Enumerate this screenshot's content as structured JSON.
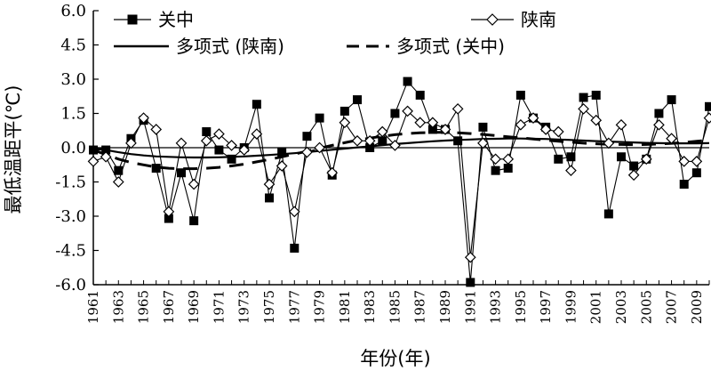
{
  "chart_data": {
    "type": "line",
    "xlabel": "年份(年)",
    "ylabel": "最低温距平(℃)",
    "ylim": [
      -6.0,
      6.0
    ],
    "yticks": [
      "6.0",
      "4.5",
      "3.0",
      "1.5",
      "0.0",
      "-1.5",
      "-3.0",
      "-4.5",
      "-6.0"
    ],
    "xlim": [
      1961,
      2010
    ],
    "xticks": [
      "1961",
      "1963",
      "1965",
      "1967",
      "1969",
      "1971",
      "1973",
      "1975",
      "1977",
      "1979",
      "1981",
      "1983",
      "1985",
      "1987",
      "1989",
      "1991",
      "1993",
      "1995",
      "1997",
      "1999",
      "2001",
      "2003",
      "2005",
      "2007",
      "2009"
    ],
    "grid": false,
    "legend_position": "top",
    "years": [
      1961,
      1962,
      1963,
      1964,
      1965,
      1966,
      1967,
      1968,
      1969,
      1970,
      1971,
      1972,
      1973,
      1974,
      1975,
      1976,
      1977,
      1978,
      1979,
      1980,
      1981,
      1982,
      1983,
      1984,
      1985,
      1986,
      1987,
      1988,
      1989,
      1990,
      1991,
      1992,
      1993,
      1994,
      1995,
      1996,
      1997,
      1998,
      1999,
      2000,
      2001,
      2002,
      2003,
      2004,
      2005,
      2006,
      2007,
      2008,
      2009,
      2010
    ],
    "series": [
      {
        "name": "关中",
        "marker": "square-filled",
        "values": [
          -0.1,
          -0.1,
          -1.0,
          0.4,
          1.2,
          -0.9,
          -3.1,
          -1.1,
          -3.2,
          0.7,
          -0.1,
          -0.5,
          0.0,
          1.9,
          -2.2,
          -0.2,
          -4.4,
          0.5,
          1.3,
          -1.2,
          1.6,
          2.1,
          0.0,
          0.3,
          1.5,
          2.9,
          2.3,
          0.8,
          0.8,
          0.3,
          -5.9,
          0.9,
          -1.0,
          -0.9,
          2.3,
          1.3,
          0.9,
          -0.5,
          -0.4,
          2.2,
          2.3,
          -2.9,
          -0.4,
          -0.8,
          -0.5,
          1.5,
          2.1,
          -1.6,
          -1.1,
          1.8
        ]
      },
      {
        "name": "陕南",
        "marker": "diamond-open",
        "values": [
          -0.6,
          -0.4,
          -1.5,
          0.2,
          1.3,
          0.8,
          -2.8,
          0.2,
          -1.6,
          0.3,
          0.6,
          0.1,
          -0.1,
          0.6,
          -1.6,
          -0.8,
          -2.8,
          -0.2,
          0.0,
          -1.1,
          1.1,
          0.3,
          0.3,
          0.7,
          0.1,
          1.6,
          1.1,
          1.1,
          0.8,
          1.7,
          -4.8,
          0.2,
          -0.5,
          -0.5,
          1.0,
          1.3,
          0.8,
          0.7,
          -1.0,
          1.7,
          1.2,
          0.2,
          1.0,
          -1.2,
          -0.5,
          1.0,
          0.4,
          -0.6,
          -0.6,
          1.3
        ]
      },
      {
        "name": "多项式 (陕南)",
        "style": "solid",
        "values": [
          0.0,
          -0.1,
          -0.2,
          -0.28,
          -0.34,
          -0.38,
          -0.4,
          -0.42,
          -0.43,
          -0.43,
          -0.42,
          -0.4,
          -0.38,
          -0.35,
          -0.32,
          -0.28,
          -0.24,
          -0.19,
          -0.14,
          -0.09,
          -0.04,
          0.01,
          0.06,
          0.11,
          0.16,
          0.2,
          0.24,
          0.28,
          0.31,
          0.34,
          0.36,
          0.38,
          0.39,
          0.4,
          0.4,
          0.39,
          0.38,
          0.36,
          0.34,
          0.31,
          0.29,
          0.27,
          0.25,
          0.23,
          0.21,
          0.2,
          0.19,
          0.19,
          0.19,
          0.2
        ]
      },
      {
        "name": "多项式 (关中)",
        "style": "dashed",
        "values": [
          -0.1,
          -0.3,
          -0.5,
          -0.65,
          -0.75,
          -0.85,
          -0.9,
          -0.92,
          -0.92,
          -0.9,
          -0.86,
          -0.8,
          -0.72,
          -0.62,
          -0.52,
          -0.4,
          -0.28,
          -0.15,
          -0.02,
          0.1,
          0.22,
          0.33,
          0.42,
          0.5,
          0.57,
          0.62,
          0.65,
          0.67,
          0.67,
          0.65,
          0.62,
          0.58,
          0.53,
          0.48,
          0.43,
          0.38,
          0.33,
          0.28,
          0.24,
          0.2,
          0.17,
          0.15,
          0.14,
          0.13,
          0.14,
          0.16,
          0.19,
          0.23,
          0.28,
          0.33
        ]
      }
    ],
    "legend": [
      {
        "label": "关中",
        "kind": "square"
      },
      {
        "label": "陕南",
        "kind": "diamond"
      },
      {
        "label": "多项式 (陕南)",
        "kind": "solid"
      },
      {
        "label": "多项式 (关中)",
        "kind": "dashed"
      }
    ]
  }
}
